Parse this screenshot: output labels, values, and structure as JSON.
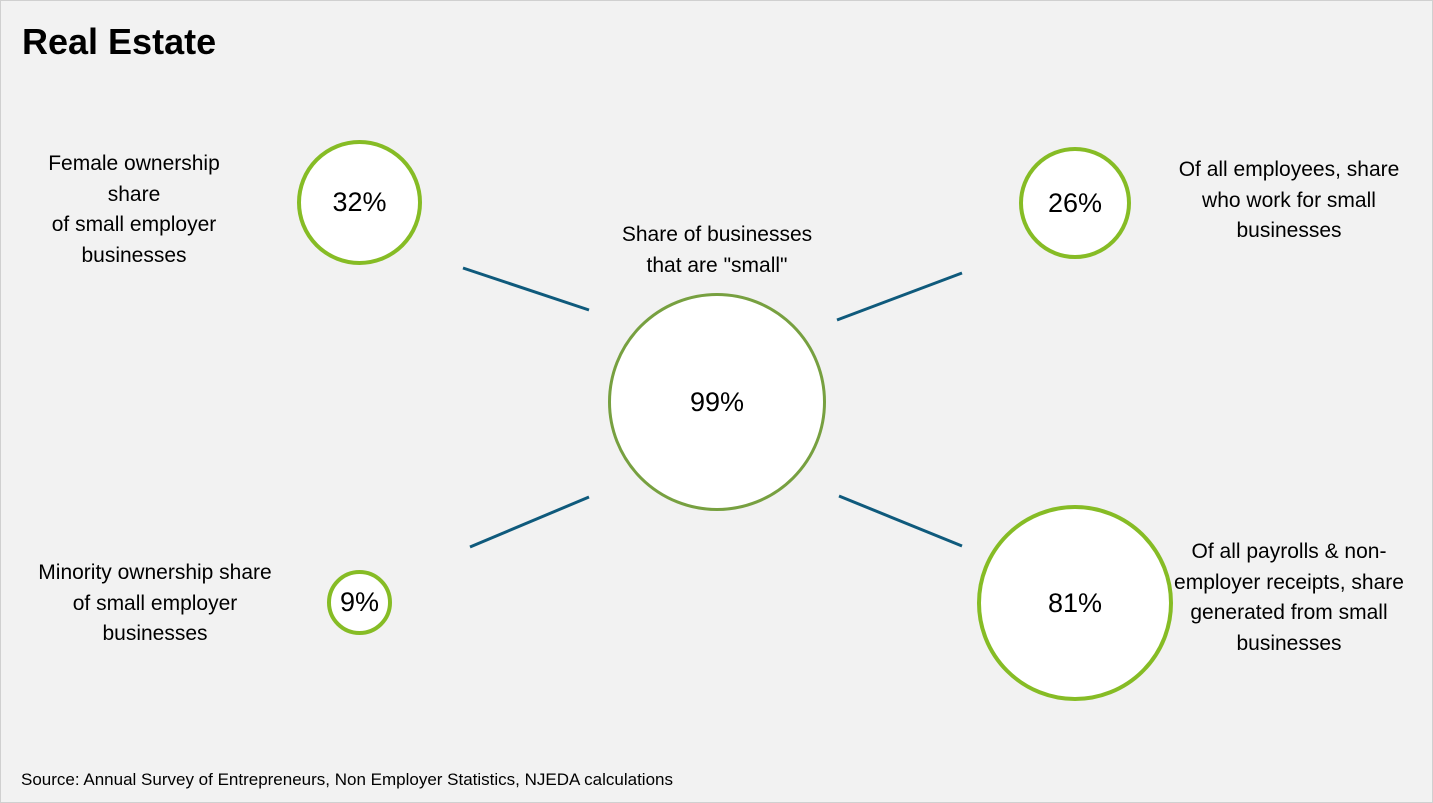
{
  "title": "Real Estate",
  "center": {
    "label_lines": [
      "Share of businesses",
      "that are \"small\""
    ],
    "value": "99%",
    "value_percent": 99
  },
  "metrics": [
    {
      "key": "female",
      "label_lines": [
        "Female ownership",
        "share",
        "of small employer",
        "businesses"
      ],
      "value": "32%",
      "value_percent": 32
    },
    {
      "key": "employees",
      "label_lines": [
        "Of all employees, share",
        "who work for small",
        "businesses"
      ],
      "value": "26%",
      "value_percent": 26
    },
    {
      "key": "minority",
      "label_lines": [
        "Minority ownership share",
        "of small employer",
        "businesses"
      ],
      "value": "9%",
      "value_percent": 9
    },
    {
      "key": "payrolls",
      "label_lines": [
        "Of all payrolls & non-",
        "employer receipts, share",
        "generated from small",
        "businesses"
      ],
      "value": "81%",
      "value_percent": 81
    }
  ],
  "source": "Source: Annual Survey of Entrepreneurs, Non Employer Statistics, NJEDA calculations",
  "colors": {
    "background": "#f2f2f2",
    "center_ring": "#77a040",
    "metric_ring": "#86bc25",
    "connector": "#0f5a7c",
    "text": "#000000"
  }
}
